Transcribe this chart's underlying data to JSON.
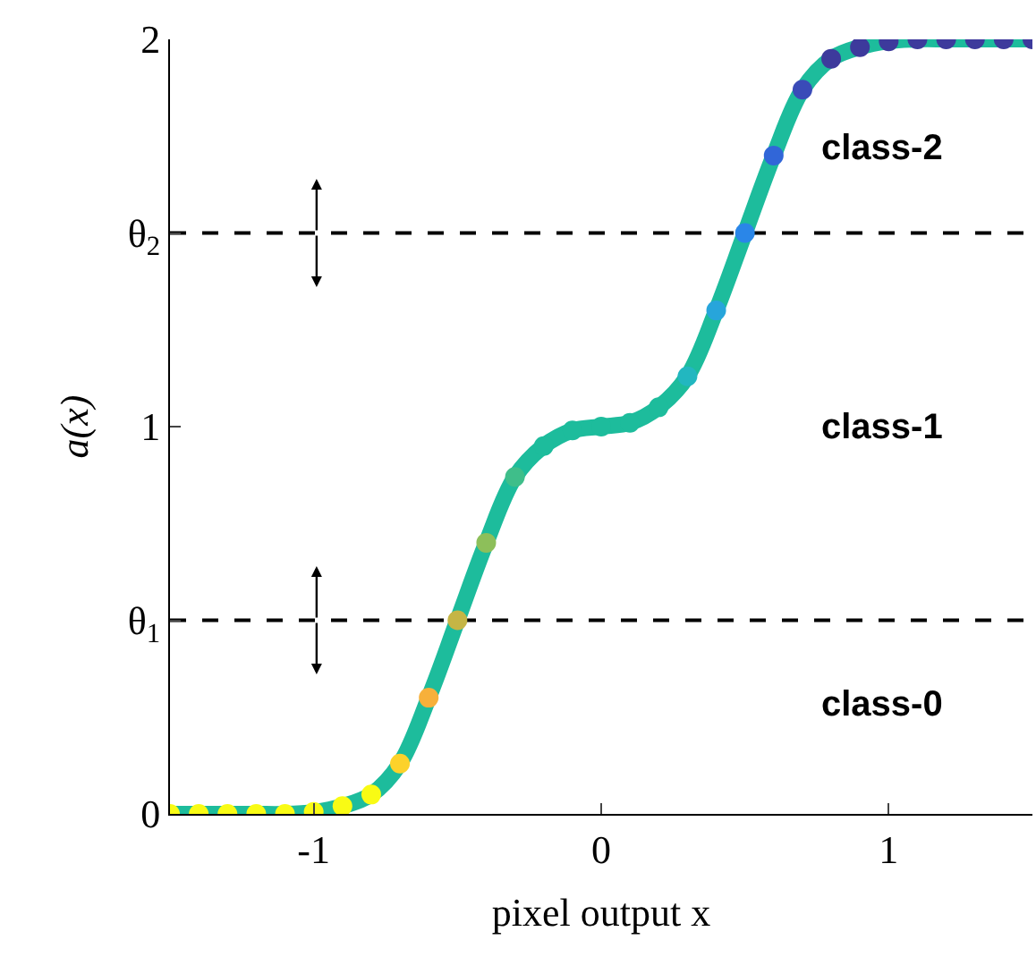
{
  "chart_data": {
    "type": "line",
    "xlabel": "pixel output x",
    "ylabel": "a(x)",
    "x": [
      -1.5,
      -1.4,
      -1.3,
      -1.2,
      -1.1,
      -1.0,
      -0.9,
      -0.8,
      -0.7,
      -0.6,
      -0.5,
      -0.4,
      -0.3,
      -0.2,
      -0.1,
      0,
      0.1,
      0.2,
      0.3,
      0.4,
      0.5,
      0.6,
      0.7,
      0.8,
      0.9,
      1.0,
      1.1,
      1.2,
      1.3,
      1.4,
      1.5
    ],
    "series": [
      {
        "color": "#1dbc9c",
        "values": [
          0,
          0,
          0,
          0,
          0,
          0.005,
          0.02,
          0.05,
          0.13,
          0.3,
          0.5,
          0.7,
          0.87,
          0.95,
          0.99,
          1.0,
          1.01,
          1.05,
          1.13,
          1.3,
          1.5,
          1.7,
          1.87,
          1.95,
          1.98,
          1.995,
          2,
          2,
          2,
          2,
          2
        ],
        "colors": [
          "#f9fb14",
          "#f9fb14",
          "#f9fb14",
          "#f9fb14",
          "#f9fb14",
          "#f9fb14",
          "#f9fb14",
          "#f9fb14",
          "#fcd22a",
          "#f7b03a",
          "#c5b545",
          "#8dbf5a",
          "#3fbe8a",
          "#1dbc9c",
          "#1dbc9c",
          "#1dbc9c",
          "#1dbc9c",
          "#1dbc9c",
          "#22b7c0",
          "#27a5db",
          "#2a86e8",
          "#3166d8",
          "#3a4bb8",
          "#3d3a9c",
          "#3d3a9c",
          "#3d3a9c",
          "#3d3a9c",
          "#3d3a9c",
          "#3d3a9c",
          "#3d3a9c",
          "#3d3a9c"
        ]
      }
    ],
    "xlim": [
      -1.5,
      1.5
    ],
    "xticks": [
      -1,
      0,
      1
    ],
    "ylim": [
      0,
      2
    ],
    "yticks": [
      0,
      {
        "value": 0.5,
        "label": "θ$_{1}$"
      },
      1,
      {
        "value": 1.5,
        "label": "θ$_{2}$"
      },
      2
    ],
    "ref_lines": [
      {
        "axis": "y",
        "value": 0.5,
        "color": "#000000",
        "line_style": "dashed"
      },
      {
        "axis": "y",
        "value": 1.5,
        "color": "#000000",
        "line_style": "dashed"
      }
    ],
    "annotations": [
      "class-2",
      "class-1",
      "class-0"
    ],
    "grid": false,
    "marker": "circle",
    "line_style": "solid"
  }
}
